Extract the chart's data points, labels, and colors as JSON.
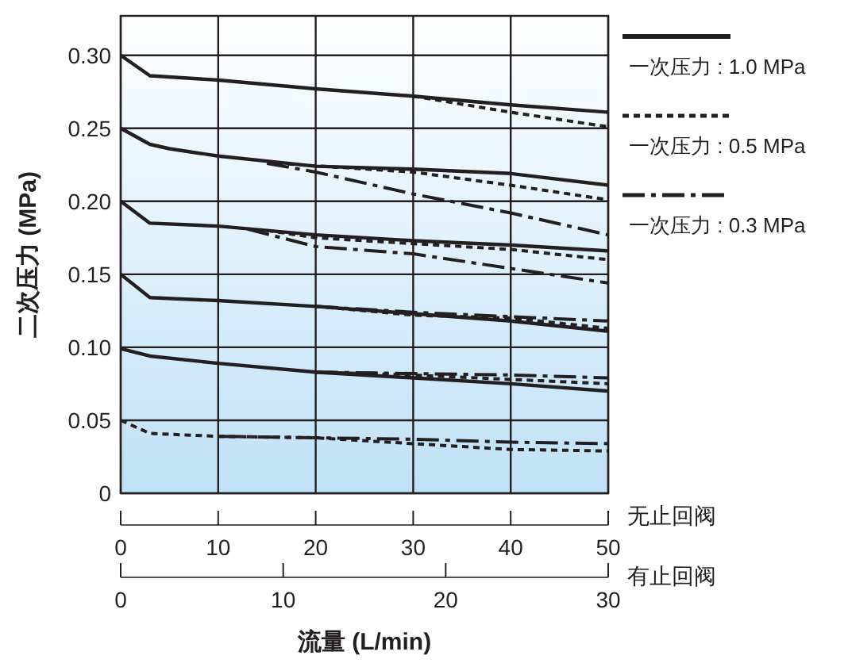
{
  "chart_data": {
    "type": "line",
    "xlabel": "流量 (L/min)",
    "ylabel": "二次压力 (MPa)",
    "x2label": "有止回阀",
    "annotations": [
      "无止回阀"
    ],
    "xlim": [
      0,
      50
    ],
    "xticks": [
      0,
      10,
      20,
      30,
      40,
      50
    ],
    "x2lim": [
      0,
      30
    ],
    "x2ticks": [
      0,
      10,
      20,
      30
    ],
    "ylim": [
      0,
      0.327
    ],
    "yticks": [
      0,
      0.05,
      {
        "value": 0.1,
        "label": "0.10"
      },
      0.15,
      {
        "value": 0.2,
        "label": "0.20"
      },
      0.25,
      {
        "value": 0.3,
        "label": "0.30"
      }
    ],
    "grid": true,
    "legend": "right",
    "marker": "none",
    "series": [
      {
        "name": "一次压力 : 1.0 MPa",
        "color": "#231f20",
        "line_style": "solid",
        "x": [
          0,
          3,
          10,
          20,
          30,
          40,
          50
        ],
        "values": [
          0.3,
          0.286,
          0.283,
          0.277,
          0.272,
          0.266,
          0.261
        ]
      },
      {
        "color": "#231f20",
        "line_style": "solid",
        "x": [
          0,
          3,
          5,
          10,
          20,
          30,
          40,
          50
        ],
        "values": [
          0.25,
          0.239,
          0.236,
          0.231,
          0.224,
          0.222,
          0.219,
          0.211
        ]
      },
      {
        "color": "#231f20",
        "line_style": "solid",
        "x": [
          0,
          3,
          10,
          20,
          30,
          40,
          50
        ],
        "values": [
          0.2,
          0.185,
          0.183,
          0.177,
          0.173,
          0.17,
          0.166
        ]
      },
      {
        "color": "#231f20",
        "line_style": "solid",
        "x": [
          0,
          3,
          10,
          20,
          30,
          40,
          50
        ],
        "values": [
          0.15,
          0.134,
          0.132,
          0.128,
          0.123,
          0.118,
          0.111
        ]
      },
      {
        "color": "#231f20",
        "line_style": "solid",
        "x": [
          0,
          3,
          10,
          20,
          30,
          40,
          50
        ],
        "values": [
          0.099,
          0.094,
          0.089,
          0.083,
          0.079,
          0.075,
          0.07
        ]
      },
      {
        "name": "一次压力 : 0.5 MPa",
        "color": "#231f20",
        "line_style": "dotted",
        "x": [
          30,
          40,
          50
        ],
        "values": [
          0.272,
          0.261,
          0.251
        ]
      },
      {
        "color": "#231f20",
        "line_style": "dotted",
        "x": [
          16,
          30,
          40,
          50
        ],
        "values": [
          0.226,
          0.22,
          0.211,
          0.201
        ]
      },
      {
        "color": "#231f20",
        "line_style": "dotted",
        "x": [
          15,
          20,
          30,
          40,
          50
        ],
        "values": [
          0.18,
          0.175,
          0.171,
          0.167,
          0.16
        ]
      },
      {
        "color": "#231f20",
        "line_style": "dotted",
        "x": [
          20,
          30,
          40,
          50
        ],
        "values": [
          0.128,
          0.122,
          0.12,
          0.113
        ]
      },
      {
        "color": "#231f20",
        "line_style": "dotted",
        "x": [
          20,
          30,
          40,
          50
        ],
        "values": [
          0.083,
          0.081,
          0.078,
          0.075
        ]
      },
      {
        "color": "#231f20",
        "line_style": "dotted",
        "x": [
          0,
          3,
          10,
          20,
          30,
          40,
          50
        ],
        "values": [
          0.05,
          0.041,
          0.039,
          0.038,
          0.034,
          0.03,
          0.029
        ]
      },
      {
        "name": "一次压力 : 0.3 MPa",
        "color": "#231f20",
        "line_style": "dashed",
        "x": [
          15,
          20,
          30,
          40,
          50
        ],
        "values": [
          0.226,
          0.22,
          0.205,
          0.192,
          0.177
        ]
      },
      {
        "color": "#231f20",
        "line_style": "dashed",
        "x": [
          13,
          20,
          30,
          40,
          50
        ],
        "values": [
          0.181,
          0.169,
          0.164,
          0.154,
          0.144
        ]
      },
      {
        "color": "#231f20",
        "line_style": "dashed",
        "x": [
          20,
          30,
          40,
          50
        ],
        "values": [
          0.128,
          0.124,
          0.121,
          0.118
        ]
      },
      {
        "color": "#231f20",
        "line_style": "dashed",
        "x": [
          20,
          30,
          40,
          50
        ],
        "values": [
          0.083,
          0.082,
          0.081,
          0.079
        ]
      },
      {
        "color": "#231f20",
        "line_style": "dashed",
        "x": [
          10,
          20,
          30,
          40,
          50
        ],
        "values": [
          0.039,
          0.038,
          0.037,
          0.035,
          0.034
        ]
      }
    ]
  }
}
